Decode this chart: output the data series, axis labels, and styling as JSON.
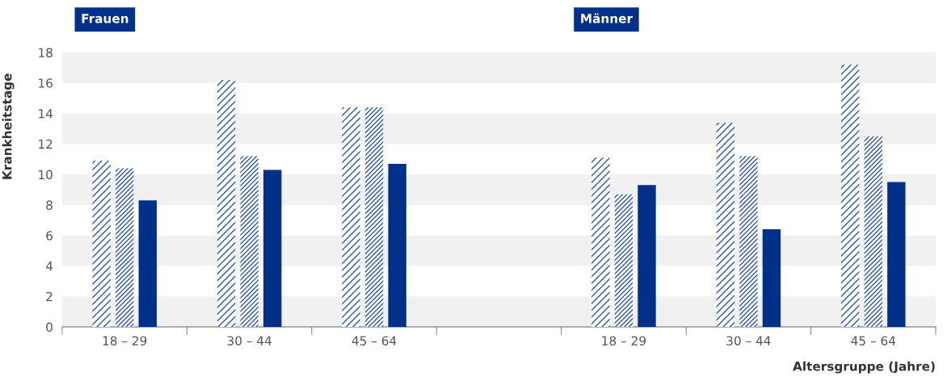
{
  "chart_data": {
    "type": "bar",
    "xlabel": "Altersgruppe (Jahre)",
    "ylabel": "Krankheitstage",
    "categories": [
      "18 – 29",
      "30 – 44",
      "45 – 64",
      null,
      "18 – 29",
      "30 – 44",
      "45 – 64"
    ],
    "series": [
      {
        "color": "#2f55a8",
        "values": [
          10.9,
          16.2,
          14.4,
          null,
          11.1,
          13.4,
          17.2
        ]
      },
      {
        "color": "#2f55a8",
        "values": [
          10.4,
          11.2,
          14.4,
          null,
          8.7,
          11.2,
          12.5
        ]
      },
      {
        "color": "#003087",
        "values": [
          8.3,
          10.3,
          10.7,
          null,
          9.3,
          6.4,
          9.5
        ]
      }
    ],
    "annotations": [
      "Frauen",
      "Männer"
    ],
    "ylim": [
      0,
      18
    ],
    "yticks": [
      0,
      2,
      4,
      6,
      8,
      10,
      12,
      14,
      16,
      18
    ],
    "legend": false,
    "bands": [
      {
        "axis": "y",
        "from": 0,
        "to": 2,
        "color": "#f1f1f1"
      },
      {
        "axis": "y",
        "from": 4,
        "to": 6,
        "color": "#f1f1f1"
      },
      {
        "axis": "y",
        "from": 8,
        "to": 10,
        "color": "#f1f1f1"
      },
      {
        "axis": "y",
        "from": 12,
        "to": 14,
        "color": "#f1f1f1"
      },
      {
        "axis": "y",
        "from": 16,
        "to": 18,
        "color": "#f1f1f1"
      }
    ]
  }
}
